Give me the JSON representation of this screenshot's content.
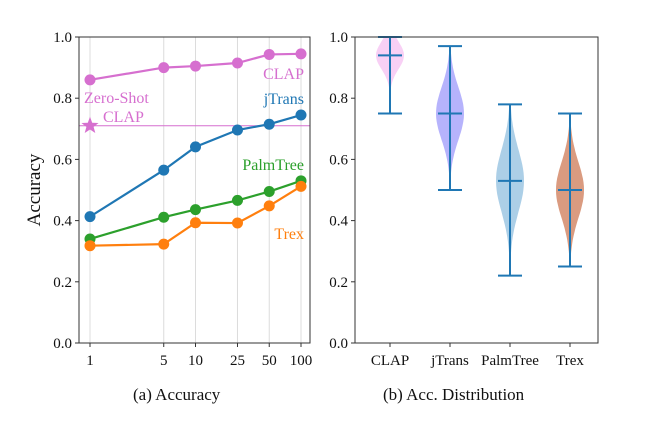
{
  "chart_data": [
    {
      "type": "line",
      "caption": "(a) Accuracy",
      "ylabel": "Accuracy",
      "xscale": "log",
      "x": [
        1,
        5,
        10,
        25,
        50,
        100
      ],
      "x_tick_labels": [
        "1",
        "5",
        "10",
        "25",
        "50",
        "100"
      ],
      "ylim": [
        0.0,
        1.0
      ],
      "y_tick_labels": [
        "0.0",
        "0.2",
        "0.4",
        "0.6",
        "0.8",
        "1.0"
      ],
      "grid": "vertical",
      "series": [
        {
          "name": "CLAP",
          "color": "#d66fcf",
          "values": [
            0.86,
            0.9,
            0.905,
            0.915,
            0.943,
            0.945
          ]
        },
        {
          "name": "jTrans",
          "color": "#1f77b4",
          "values": [
            0.413,
            0.565,
            0.641,
            0.696,
            0.715,
            0.745
          ]
        },
        {
          "name": "PalmTree",
          "color": "#2ca02c",
          "values": [
            0.34,
            0.411,
            0.436,
            0.466,
            0.495,
            0.53
          ]
        },
        {
          "name": "Trex",
          "color": "#ff7f0e",
          "values": [
            0.318,
            0.323,
            0.393,
            0.392,
            0.448,
            0.512
          ]
        }
      ],
      "reference": {
        "name": "Zero-Shot CLAP",
        "label_line1": "Zero-Shot",
        "label_line2": "CLAP",
        "value": 0.71,
        "color": "#d66fcf",
        "marker": "star"
      }
    },
    {
      "type": "violin",
      "caption": "(b) Acc. Distribution",
      "categories": [
        "CLAP",
        "jTrans",
        "PalmTree",
        "Trex"
      ],
      "ylim": [
        0.0,
        1.0
      ],
      "y_tick_labels": [
        "0.0",
        "0.2",
        "0.4",
        "0.6",
        "0.8",
        "1.0"
      ],
      "line_color": "#1f77b4",
      "violins": [
        {
          "name": "CLAP",
          "min": 0.75,
          "max": 1.0,
          "median": 0.94,
          "color": "#f7c8f3"
        },
        {
          "name": "jTrans",
          "min": 0.5,
          "max": 0.97,
          "median": 0.75,
          "color": "#a9a6fb"
        },
        {
          "name": "PalmTree",
          "min": 0.22,
          "max": 0.78,
          "median": 0.53,
          "color": "#9dc7e3"
        },
        {
          "name": "Trex",
          "min": 0.25,
          "max": 0.75,
          "median": 0.5,
          "color": "#d4896a"
        }
      ]
    }
  ]
}
